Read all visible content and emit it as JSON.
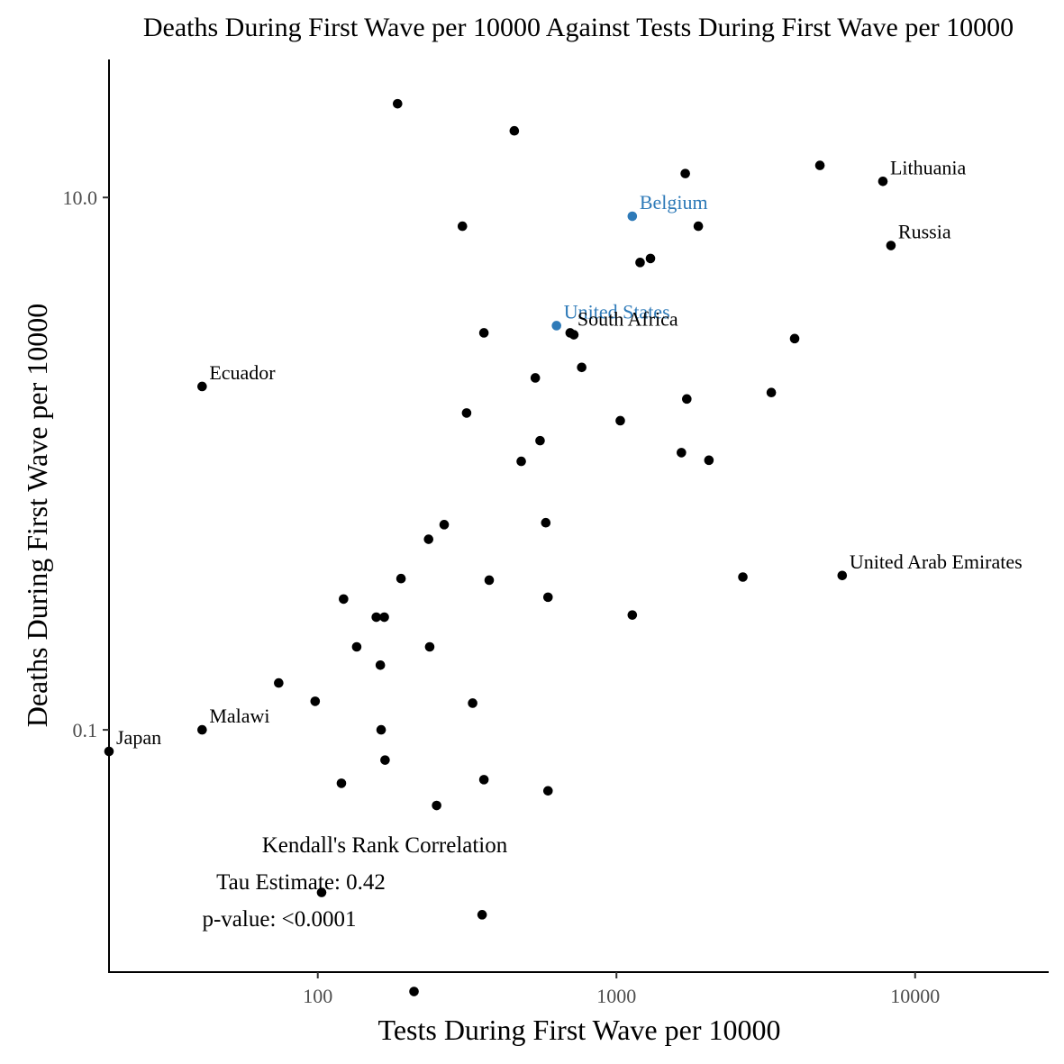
{
  "chart_data": {
    "type": "scatter",
    "title": "Deaths During First Wave per 10000 Against Tests During First Wave per 10000",
    "xlabel": "Tests During First Wave per 10000",
    "ylabel": "Deaths During First Wave per 10000",
    "x_scale": "log10",
    "y_scale": "log10",
    "xlim": [
      20,
      28000
    ],
    "ylim": [
      0.0123,
      33
    ],
    "x_ticks": [
      {
        "value": 100,
        "label": "100"
      },
      {
        "value": 1000,
        "label": "1000"
      },
      {
        "value": 10000,
        "label": "10000"
      }
    ],
    "y_ticks": [
      {
        "value": 0.1,
        "label": "0.1"
      },
      {
        "value": 10,
        "label": "10.0"
      }
    ],
    "grid": false,
    "colors": {
      "point": "#000000",
      "highlight": "#2e7ab8",
      "axis": "#000000",
      "tick_label": "#4d4d4d"
    },
    "points": [
      {
        "x": 20,
        "y": 0.083,
        "label": "Japan"
      },
      {
        "x": 41,
        "y": 0.1,
        "label": "Malawi"
      },
      {
        "x": 41,
        "y": 1.95,
        "label": "Ecuador"
      },
      {
        "x": 1130,
        "y": 8.5,
        "label": "Belgium",
        "highlight": true
      },
      {
        "x": 630,
        "y": 3.3,
        "label": "United States",
        "highlight": true
      },
      {
        "x": 700,
        "y": 3.1,
        "label": "South Africa"
      },
      {
        "x": 7800,
        "y": 11.5,
        "label": "Lithuania"
      },
      {
        "x": 8300,
        "y": 6.6,
        "label": "Russia"
      },
      {
        "x": 5700,
        "y": 0.38,
        "label": "United Arab Emirates"
      },
      {
        "x": 185,
        "y": 22.5
      },
      {
        "x": 455,
        "y": 17.8
      },
      {
        "x": 1700,
        "y": 12.3
      },
      {
        "x": 4800,
        "y": 13.2
      },
      {
        "x": 305,
        "y": 7.8
      },
      {
        "x": 1880,
        "y": 7.8
      },
      {
        "x": 1300,
        "y": 5.9
      },
      {
        "x": 1200,
        "y": 5.7
      },
      {
        "x": 360,
        "y": 3.1
      },
      {
        "x": 720,
        "y": 3.05
      },
      {
        "x": 3950,
        "y": 2.95
      },
      {
        "x": 535,
        "y": 2.1
      },
      {
        "x": 765,
        "y": 2.3
      },
      {
        "x": 3300,
        "y": 1.85
      },
      {
        "x": 1720,
        "y": 1.75
      },
      {
        "x": 315,
        "y": 1.55
      },
      {
        "x": 1030,
        "y": 1.45
      },
      {
        "x": 555,
        "y": 1.22
      },
      {
        "x": 480,
        "y": 1.02
      },
      {
        "x": 1650,
        "y": 1.1
      },
      {
        "x": 2040,
        "y": 1.03
      },
      {
        "x": 265,
        "y": 0.59
      },
      {
        "x": 580,
        "y": 0.6
      },
      {
        "x": 235,
        "y": 0.52
      },
      {
        "x": 190,
        "y": 0.37
      },
      {
        "x": 375,
        "y": 0.365
      },
      {
        "x": 2650,
        "y": 0.375
      },
      {
        "x": 122,
        "y": 0.31
      },
      {
        "x": 590,
        "y": 0.315
      },
      {
        "x": 1130,
        "y": 0.27
      },
      {
        "x": 157,
        "y": 0.265
      },
      {
        "x": 167,
        "y": 0.265
      },
      {
        "x": 135,
        "y": 0.205
      },
      {
        "x": 237,
        "y": 0.205
      },
      {
        "x": 162,
        "y": 0.175
      },
      {
        "x": 74,
        "y": 0.15
      },
      {
        "x": 98,
        "y": 0.128
      },
      {
        "x": 330,
        "y": 0.126
      },
      {
        "x": 163,
        "y": 0.1
      },
      {
        "x": 168,
        "y": 0.077
      },
      {
        "x": 120,
        "y": 0.063
      },
      {
        "x": 360,
        "y": 0.065
      },
      {
        "x": 590,
        "y": 0.059
      },
      {
        "x": 250,
        "y": 0.052
      },
      {
        "x": 103,
        "y": 0.0245
      },
      {
        "x": 355,
        "y": 0.0202
      },
      {
        "x": 210,
        "y": 0.0104
      }
    ]
  },
  "annotation": {
    "heading": "Kendall's Rank Correlation",
    "tau": "Tau Estimate: 0.42",
    "pvalue": "p-value: <0.0001"
  }
}
